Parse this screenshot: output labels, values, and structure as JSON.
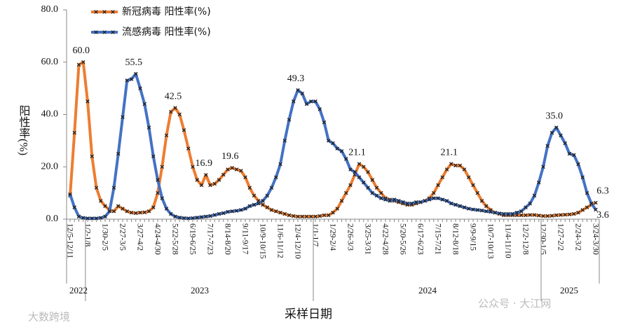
{
  "chart_data": {
    "type": "line",
    "y_label": "阳性率(%)",
    "x_label": "采样日期",
    "year_labels": [
      "2022",
      "2023",
      "2024",
      "2025"
    ],
    "watermarks": [
      "大数跨境",
      "公众号 · 大江网"
    ],
    "legend": "top",
    "ylim": [
      0,
      80
    ],
    "yticks": [
      {
        "value": 0,
        "label": "0.0"
      },
      {
        "value": 20,
        "label": "20.0"
      },
      {
        "value": 40,
        "label": "40.0"
      },
      {
        "value": 60,
        "label": "60.0"
      },
      {
        "value": 80,
        "label": "80.0"
      }
    ],
    "categories": [
      "12/5-12/11",
      null,
      null,
      null,
      "1/2-1/8",
      null,
      null,
      null,
      "1/30-2/5",
      null,
      null,
      null,
      "2/27-3/5",
      null,
      null,
      null,
      "3/27-4/2",
      null,
      null,
      null,
      "4/24-4/30",
      null,
      null,
      null,
      "5/22-5/28",
      null,
      null,
      null,
      "6/19-6/25",
      null,
      null,
      null,
      "7/17-7/23",
      null,
      null,
      null,
      "8/14-8/20",
      null,
      null,
      null,
      "9/11-9/17",
      null,
      null,
      null,
      "10/9-10/15",
      null,
      null,
      null,
      "11/6-11/12",
      null,
      null,
      null,
      "12/4-12/10",
      null,
      null,
      null,
      "1/1-1/7",
      null,
      null,
      null,
      "1/29-2/4",
      null,
      null,
      null,
      "2/26-3/3",
      null,
      null,
      null,
      "3/25-3/31",
      null,
      null,
      null,
      "4/22-4/28",
      null,
      null,
      null,
      "5/20-5/26",
      null,
      null,
      null,
      "6/17-6/23",
      null,
      null,
      null,
      "7/15-7/21",
      null,
      null,
      null,
      "8/12-8/18",
      null,
      null,
      null,
      "9/9-9/15",
      null,
      null,
      null,
      "10/7-10/13",
      null,
      null,
      null,
      "11/4-11/10",
      null,
      null,
      null,
      "12/2-12/8",
      null,
      null,
      null,
      "12/30-1/5",
      null,
      null,
      null,
      "1/27-2/2",
      null,
      null,
      null,
      "2/24-3/2",
      null,
      null,
      null,
      "3/24-3/30"
    ],
    "series": [
      {
        "name": "新冠病毒 阳性率(%)",
        "color": "#ed7d31",
        "values": [
          9,
          33,
          59,
          60.0,
          45,
          24,
          12,
          7,
          5,
          3.5,
          3,
          5,
          4,
          3,
          2.5,
          2.3,
          2.5,
          2.6,
          3,
          4.5,
          10,
          20,
          32,
          41,
          42.5,
          40,
          34,
          27,
          20,
          15,
          13,
          16.9,
          13,
          13.5,
          15,
          17,
          19,
          19.6,
          19,
          18.5,
          16,
          12,
          9,
          7,
          5.5,
          4.5,
          3.5,
          3,
          2.5,
          2,
          1.5,
          1.2,
          1,
          1,
          1,
          1,
          1,
          1.2,
          1.5,
          1.5,
          2.5,
          4,
          7,
          10,
          13,
          17,
          21.1,
          20,
          18,
          15,
          12,
          10,
          8,
          7.5,
          7,
          6.5,
          6,
          5.5,
          5.5,
          6,
          6.5,
          7,
          8,
          10,
          13,
          16,
          19,
          21.1,
          20.5,
          20.5,
          19,
          16,
          13,
          10,
          7,
          5,
          3.5,
          2.5,
          2,
          1.5,
          1.5,
          1.5,
          1.5,
          1.5,
          1.5,
          1.6,
          1.6,
          1.4,
          1.2,
          1.2,
          1.3,
          1.5,
          1.6,
          1.7,
          1.8,
          2,
          2.5,
          3.5,
          4.5,
          5.5,
          6.3
        ],
        "value_labels": [
          null,
          null,
          null,
          "60.0",
          null,
          null,
          null,
          null,
          null,
          null,
          null,
          null,
          null,
          null,
          null,
          null,
          null,
          null,
          null,
          null,
          null,
          null,
          null,
          null,
          "42.5",
          null,
          null,
          null,
          null,
          null,
          null,
          "16.9",
          null,
          null,
          null,
          null,
          null,
          "19.6",
          null,
          null,
          null,
          null,
          null,
          null,
          null,
          null,
          null,
          null,
          null,
          null,
          null,
          null,
          null,
          null,
          null,
          null,
          null,
          null,
          null,
          null,
          null,
          null,
          null,
          null,
          null,
          null,
          "21.1",
          null,
          null,
          null,
          null,
          null,
          null,
          null,
          null,
          null,
          null,
          null,
          null,
          null,
          null,
          null,
          null,
          null,
          null,
          null,
          null,
          "21.1",
          null,
          null,
          null,
          null,
          null,
          null,
          null,
          null,
          null,
          null,
          null,
          null,
          null,
          null,
          null,
          null,
          null,
          null,
          null,
          null,
          null,
          null,
          null,
          null,
          null,
          null,
          null,
          null,
          null,
          null,
          null,
          null,
          "6.3"
        ]
      },
      {
        "name": "流感病毒 阳性率(%)",
        "color": "#4472c4",
        "values": [
          9.5,
          4.5,
          1,
          0.5,
          0.3,
          0.3,
          0.3,
          0.5,
          1,
          3,
          12,
          25,
          39,
          53,
          53.5,
          55.5,
          50,
          44,
          35,
          24,
          15,
          8,
          4,
          2,
          1,
          0.6,
          0.4,
          0.3,
          0.4,
          0.6,
          0.8,
          1,
          1.2,
          1.6,
          2,
          2.3,
          2.8,
          3,
          3.2,
          3.5,
          4,
          5,
          5.5,
          6,
          7,
          9,
          12,
          16,
          21,
          30,
          38,
          45,
          49.3,
          48,
          44,
          45,
          45,
          42,
          37,
          30,
          29,
          27,
          26,
          23,
          19,
          18,
          16,
          14,
          12,
          10,
          9,
          8,
          7.5,
          7,
          7.5,
          7,
          6.5,
          6,
          6,
          6.5,
          6.5,
          7,
          7.5,
          8,
          8,
          7.5,
          7,
          6,
          5.5,
          5,
          4.5,
          4,
          3.7,
          3.5,
          3.3,
          3,
          2.8,
          2.5,
          2.2,
          2,
          2,
          2,
          2.5,
          3,
          4.5,
          6,
          9,
          14,
          20,
          28,
          33,
          35.0,
          32,
          29,
          25,
          24.5,
          21,
          16,
          10,
          6,
          3.6
        ],
        "value_labels": [
          null,
          null,
          null,
          null,
          null,
          null,
          null,
          null,
          null,
          null,
          null,
          null,
          null,
          null,
          null,
          "55.5",
          null,
          null,
          null,
          null,
          null,
          null,
          null,
          null,
          null,
          null,
          null,
          null,
          null,
          null,
          null,
          null,
          null,
          null,
          null,
          null,
          null,
          null,
          null,
          null,
          null,
          null,
          null,
          null,
          null,
          null,
          null,
          null,
          null,
          null,
          null,
          null,
          "49.3",
          null,
          null,
          null,
          null,
          null,
          null,
          null,
          null,
          null,
          null,
          null,
          null,
          null,
          null,
          null,
          null,
          null,
          null,
          null,
          null,
          null,
          null,
          null,
          null,
          null,
          null,
          null,
          null,
          null,
          null,
          null,
          null,
          null,
          null,
          null,
          null,
          null,
          null,
          null,
          null,
          null,
          null,
          null,
          null,
          null,
          null,
          null,
          null,
          null,
          null,
          null,
          null,
          null,
          null,
          null,
          null,
          null,
          null,
          "35.0",
          null,
          null,
          null,
          null,
          null,
          null,
          null,
          null,
          "3.6"
        ]
      }
    ]
  }
}
